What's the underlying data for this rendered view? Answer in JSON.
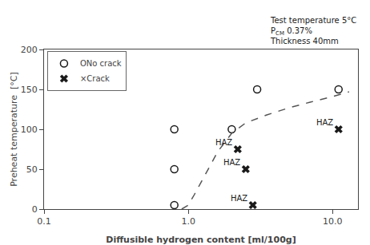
{
  "chart_data": {
    "type": "scatter",
    "xlabel": "Diffusible hydrogen content [ml/100g]",
    "ylabel": "Preheat temperature  [°C]",
    "log": "x",
    "xlim": [
      0.1,
      15
    ],
    "ylim": [
      0,
      200
    ],
    "xticks": [
      0.1,
      {
        "value": 1.0,
        "label": "1.0"
      },
      {
        "value": 10.0,
        "label": "10.0"
      }
    ],
    "yticks": [
      0,
      50,
      100,
      150,
      200
    ],
    "grid": false,
    "legend": "upper left",
    "series": [
      {
        "name": "ONo crack",
        "color": "#1a1a1a",
        "marker": "circle-open",
        "x": [
          0.8,
          0.8,
          0.8,
          2.0,
          3.0,
          11.0
        ],
        "values": [
          5,
          50,
          100,
          100,
          150,
          150
        ]
      },
      {
        "name": "×Crack",
        "color": "#1a1a1a",
        "marker": "x",
        "x": [
          2.2,
          2.5,
          2.8,
          11.0
        ],
        "values": [
          75,
          50,
          5,
          100
        ]
      },
      {
        "type": "line",
        "color": "#555555",
        "line_style": "dashed",
        "x": [
          0.9,
          1.0,
          1.1,
          1.3,
          1.6,
          2.0,
          2.5,
          3.5,
          5.0,
          7.0,
          10.0,
          13.0
        ],
        "values": [
          0,
          5,
          18,
          42,
          72,
          95,
          108,
          118,
          127,
          134,
          141,
          147
        ]
      }
    ],
    "point_labels": [
      {
        "x": 2.2,
        "y": 75,
        "text": "HAZ"
      },
      {
        "x": 2.5,
        "y": 50,
        "text": "HAZ"
      },
      {
        "x": 2.8,
        "y": 5,
        "text": "HAZ"
      },
      {
        "x": 11.0,
        "y": 100,
        "text": "HAZ"
      }
    ],
    "annotations": [
      {
        "text": "Test temperature 5°C"
      },
      {
        "text": "PCM 0.37%",
        "subscript": "CM"
      },
      {
        "text": "Thickness 40mm"
      }
    ],
    "text_color": "#1a1a1a"
  }
}
